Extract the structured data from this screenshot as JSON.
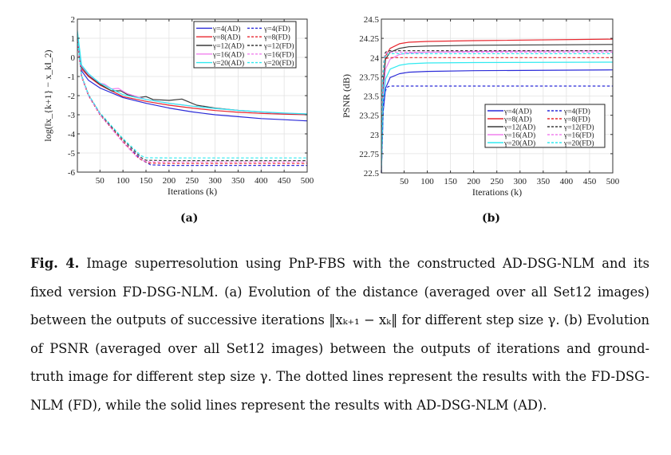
{
  "figure": {
    "sub_labels": {
      "a": "(a)",
      "b": "(b)"
    },
    "caption": {
      "fig_label": "Fig. 4.",
      "text": "Image superresolution using PnP-FBS with the constructed AD-DSG-NLM and its fixed version FD-DSG-NLM. (a) Evolution of the distance (averaged over all Set12 images) between the outputs of successive iterations ‖xₖ₊₁ − xₖ‖ for different step size γ. (b) Evolution of PSNR (averaged over all Set12 images) between the outputs of iterations and ground-truth image for different step size γ. The dotted lines represent the results with the FD-DSG-NLM (FD), while the solid lines represent the results with AD-DSG-NLM (AD)."
    }
  },
  "colors": {
    "g4": "#2a2ad8",
    "g8": "#e8262e",
    "g12": "#3a3a3a",
    "g16": "#f080ee",
    "g20": "#30eaf0",
    "grid": "#e2e2e2",
    "axis": "#333333"
  },
  "chart_data": [
    {
      "id": "a",
      "type": "line",
      "title": "",
      "xlabel": "Iterations (k)",
      "ylabel": "log(‖x_{k+1} − x_k‖_2)",
      "xlim": [
        1,
        500
      ],
      "ylim": [
        -6,
        2
      ],
      "xticks": [
        50,
        100,
        150,
        200,
        250,
        300,
        350,
        400,
        450,
        500
      ],
      "yticks": [
        -6,
        -5,
        -4,
        -3,
        -2,
        -1,
        0,
        1,
        2
      ],
      "grid": true,
      "legend": {
        "position": "top-right",
        "columns": 2
      },
      "series": [
        {
          "name": "γ=4(AD)",
          "color_key": "g4",
          "dash": false,
          "x": [
            1,
            10,
            25,
            50,
            100,
            150,
            200,
            250,
            300,
            350,
            400,
            450,
            500
          ],
          "y": [
            1.0,
            -0.7,
            -1.2,
            -1.6,
            -2.1,
            -2.4,
            -2.65,
            -2.85,
            -3.0,
            -3.1,
            -3.2,
            -3.26,
            -3.32
          ]
        },
        {
          "name": "γ=8(AD)",
          "color_key": "g8",
          "dash": false,
          "x": [
            1,
            10,
            25,
            50,
            100,
            150,
            200,
            250,
            300,
            350,
            400,
            450,
            500
          ],
          "y": [
            1.1,
            -0.6,
            -1.0,
            -1.45,
            -2.05,
            -2.3,
            -2.5,
            -2.65,
            -2.78,
            -2.87,
            -2.93,
            -2.97,
            -3.0
          ]
        },
        {
          "name": "γ=12(AD)",
          "color_key": "g12",
          "dash": false,
          "x": [
            1,
            10,
            25,
            50,
            75,
            95,
            110,
            135,
            150,
            165,
            200,
            228,
            240,
            260,
            300,
            350,
            400,
            450,
            500
          ],
          "y": [
            1.2,
            -0.5,
            -0.95,
            -1.4,
            -1.75,
            -1.75,
            -1.95,
            -2.1,
            -2.05,
            -2.2,
            -2.25,
            -2.18,
            -2.3,
            -2.5,
            -2.65,
            -2.77,
            -2.86,
            -2.93,
            -2.97
          ]
        },
        {
          "name": "γ=16(AD)",
          "color_key": "g16",
          "dash": false,
          "x": [
            1,
            10,
            25,
            50,
            60,
            75,
            90,
            95,
            110,
            150,
            200,
            250,
            300,
            350,
            400,
            450,
            500
          ],
          "y": [
            1.3,
            -0.45,
            -0.9,
            -1.35,
            -1.4,
            -1.65,
            -1.62,
            -1.7,
            -1.9,
            -2.2,
            -2.4,
            -2.55,
            -2.67,
            -2.77,
            -2.86,
            -2.92,
            -2.96
          ]
        },
        {
          "name": "γ=20(AD)",
          "color_key": "g20",
          "dash": false,
          "x": [
            1,
            10,
            25,
            50,
            100,
            150,
            200,
            250,
            300,
            350,
            400,
            450,
            500
          ],
          "y": [
            1.4,
            -0.4,
            -0.85,
            -1.35,
            -1.95,
            -2.2,
            -2.4,
            -2.55,
            -2.67,
            -2.77,
            -2.85,
            -2.91,
            -2.96
          ]
        },
        {
          "name": "γ=4(FD)",
          "color_key": "g4",
          "dash": true,
          "x": [
            1,
            10,
            25,
            50,
            100,
            140,
            160,
            200,
            500
          ],
          "y": [
            0.9,
            -1.0,
            -2.0,
            -3.0,
            -4.4,
            -5.35,
            -5.62,
            -5.65,
            -5.65
          ]
        },
        {
          "name": "γ=8(FD)",
          "color_key": "g8",
          "dash": true,
          "x": [
            1,
            10,
            25,
            50,
            100,
            135,
            155,
            200,
            500
          ],
          "y": [
            0.9,
            -1.0,
            -2.0,
            -3.0,
            -4.4,
            -5.3,
            -5.52,
            -5.55,
            -5.55
          ]
        },
        {
          "name": "γ=12(FD)",
          "color_key": "g12",
          "dash": true,
          "x": [
            1,
            10,
            25,
            50,
            100,
            140,
            150,
            200,
            500
          ],
          "y": [
            0.95,
            -0.95,
            -1.95,
            -2.95,
            -4.3,
            -5.25,
            -5.38,
            -5.4,
            -5.4
          ]
        },
        {
          "name": "γ=16(FD)",
          "color_key": "g16",
          "dash": true,
          "x": [
            1,
            10,
            25,
            50,
            100,
            130,
            150,
            200,
            500
          ],
          "y": [
            0.95,
            -1.0,
            -2.0,
            -3.0,
            -4.45,
            -5.2,
            -5.45,
            -5.47,
            -5.47
          ]
        },
        {
          "name": "γ=20(FD)",
          "color_key": "g20",
          "dash": true,
          "x": [
            1,
            10,
            25,
            50,
            100,
            140,
            150,
            200,
            500
          ],
          "y": [
            1.0,
            -0.95,
            -1.95,
            -2.9,
            -4.25,
            -5.15,
            -5.25,
            -5.26,
            -5.26
          ]
        }
      ]
    },
    {
      "id": "b",
      "type": "line",
      "title": "",
      "xlabel": "Iterations (k)",
      "ylabel": "PSNR (dB)",
      "xlim": [
        1,
        500
      ],
      "ylim": [
        22.5,
        24.5
      ],
      "xticks": [
        50,
        100,
        150,
        200,
        250,
        300,
        350,
        400,
        450,
        500
      ],
      "yticks": [
        22.5,
        22.75,
        23,
        23.25,
        23.5,
        23.75,
        24,
        24.25,
        24.5
      ],
      "ytick_labels": [
        "22.5",
        "22.75",
        "23",
        "23.25",
        "23.5",
        "23.75",
        "24",
        "24.25",
        "24.5"
      ],
      "grid": true,
      "legend": {
        "position": "bottom-right",
        "columns": 2
      },
      "series": [
        {
          "name": "γ=4(AD)",
          "color_key": "g4",
          "dash": false,
          "x": [
            1,
            5,
            10,
            20,
            40,
            60,
            100,
            200,
            500
          ],
          "y": [
            22.5,
            23.3,
            23.6,
            23.74,
            23.79,
            23.81,
            23.82,
            23.83,
            23.84
          ]
        },
        {
          "name": "γ=8(AD)",
          "color_key": "g8",
          "dash": false,
          "x": [
            1,
            5,
            10,
            20,
            40,
            60,
            100,
            200,
            500
          ],
          "y": [
            22.5,
            23.7,
            24.02,
            24.12,
            24.18,
            24.2,
            24.21,
            24.22,
            24.24
          ]
        },
        {
          "name": "γ=12(AD)",
          "color_key": "g12",
          "dash": false,
          "x": [
            1,
            5,
            10,
            20,
            40,
            60,
            100,
            200,
            500
          ],
          "y": [
            22.5,
            23.65,
            23.98,
            24.07,
            24.12,
            24.14,
            24.15,
            24.16,
            24.17
          ]
        },
        {
          "name": "γ=16(AD)",
          "color_key": "g16",
          "dash": false,
          "x": [
            1,
            5,
            10,
            20,
            40,
            60,
            100,
            200,
            500
          ],
          "y": [
            22.5,
            23.5,
            23.85,
            23.98,
            24.04,
            24.06,
            24.07,
            24.08,
            24.09
          ]
        },
        {
          "name": "γ=20(AD)",
          "color_key": "g20",
          "dash": false,
          "x": [
            1,
            5,
            10,
            20,
            40,
            60,
            100,
            200,
            500
          ],
          "y": [
            22.5,
            23.4,
            23.72,
            23.85,
            23.9,
            23.92,
            23.93,
            23.935,
            23.94
          ]
        },
        {
          "name": "γ=4(FD)",
          "color_key": "g4",
          "dash": true,
          "x": [
            1,
            5,
            10,
            15,
            20,
            500
          ],
          "y": [
            22.5,
            23.4,
            23.57,
            23.62,
            23.63,
            23.63
          ]
        },
        {
          "name": "γ=8(FD)",
          "color_key": "g8",
          "dash": true,
          "x": [
            1,
            4,
            8,
            12,
            20,
            500
          ],
          "y": [
            22.5,
            23.7,
            23.96,
            23.99,
            24.0,
            24.0
          ]
        },
        {
          "name": "γ=12(FD)",
          "color_key": "g12",
          "dash": true,
          "x": [
            1,
            4,
            8,
            12,
            20,
            500
          ],
          "y": [
            22.5,
            23.75,
            24.05,
            24.08,
            24.09,
            24.09
          ]
        },
        {
          "name": "γ=16(FD)",
          "color_key": "g16",
          "dash": true,
          "x": [
            1,
            4,
            8,
            12,
            20,
            500
          ],
          "y": [
            22.5,
            23.7,
            24.02,
            24.06,
            24.07,
            24.07
          ]
        },
        {
          "name": "γ=20(FD)",
          "color_key": "g20",
          "dash": true,
          "x": [
            1,
            4,
            8,
            12,
            20,
            500
          ],
          "y": [
            22.5,
            23.7,
            24.0,
            24.04,
            24.05,
            24.05
          ]
        }
      ]
    }
  ]
}
